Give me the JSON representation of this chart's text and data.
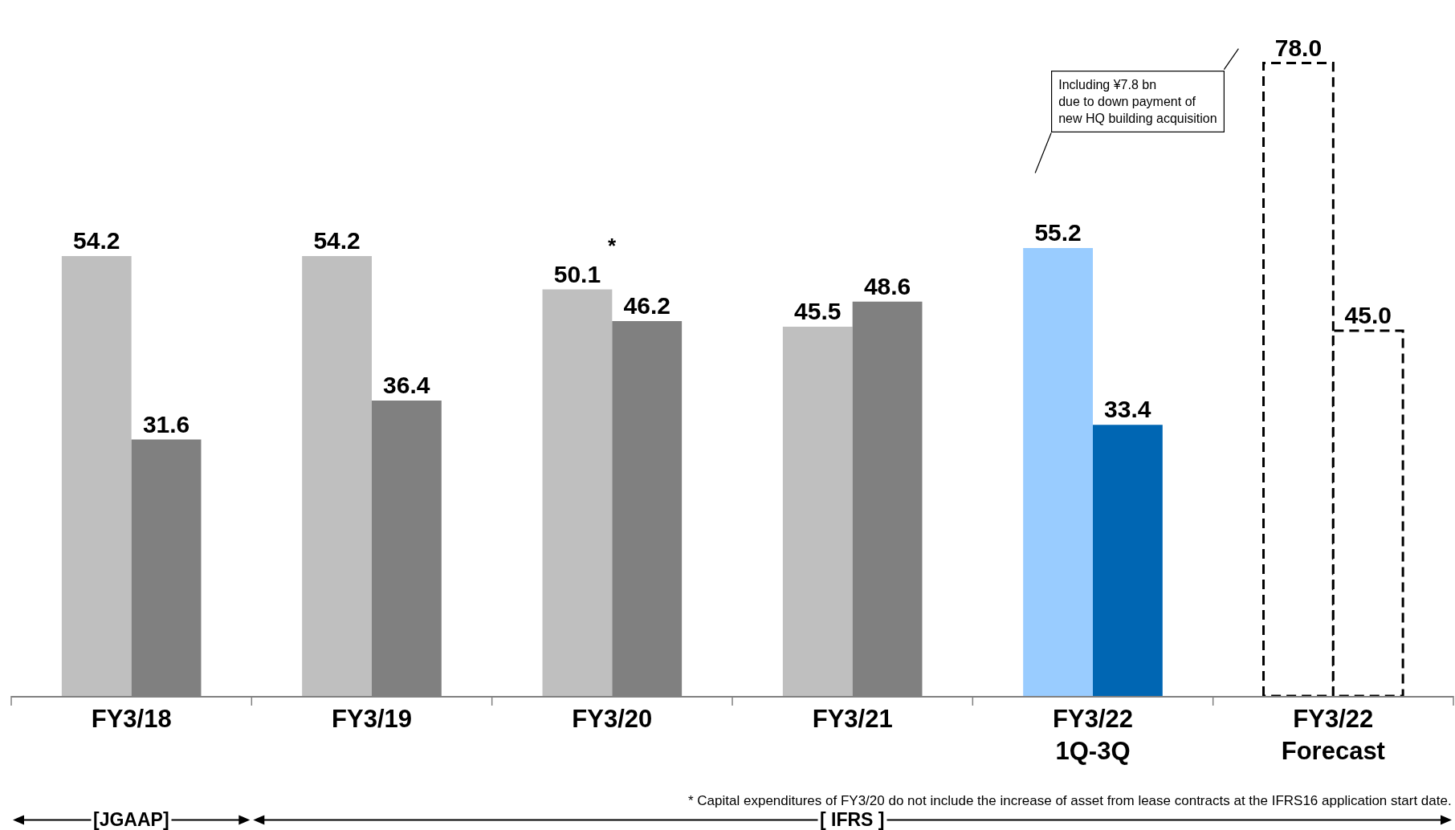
{
  "chart_data": {
    "type": "bar",
    "categories": [
      "FY3/18",
      "FY3/19",
      "FY3/20",
      "FY3/21",
      "FY3/22\n1Q-3Q",
      "FY3/22\nForecast"
    ],
    "series": [
      {
        "colors": [
          "#bfbfbf",
          "#bfbfbf",
          "#bfbfbf",
          "#bfbfbf",
          "#99ccff",
          "#ffffff"
        ],
        "values": [
          54.2,
          54.2,
          50.1,
          45.5,
          55.2,
          78.0
        ],
        "value_labels": [
          "54.2",
          "54.2",
          "50.1",
          "45.5",
          "55.2",
          "78.0"
        ]
      },
      {
        "colors": [
          "#808080",
          "#808080",
          "#808080",
          "#808080",
          "#0066b3",
          "#ffffff"
        ],
        "values": [
          31.6,
          36.4,
          46.2,
          48.6,
          33.4,
          45.0
        ],
        "value_labels": [
          "31.6",
          "36.4",
          "46.2",
          "48.6",
          "33.4",
          "45.0"
        ]
      }
    ],
    "tick_labels": "x",
    "annotations": [
      {
        "text": "*",
        "x": "FY3/20",
        "y": 50.1
      },
      "Including ¥7.8 bn\ndue to down payment of\nnew HQ building acquisition",
      "* Capital expenditures of FY3/20 do not include the increase of asset from lease contracts at the IFRS16 application start date.",
      "[JGAAP]",
      "[ IFRS ]"
    ]
  }
}
